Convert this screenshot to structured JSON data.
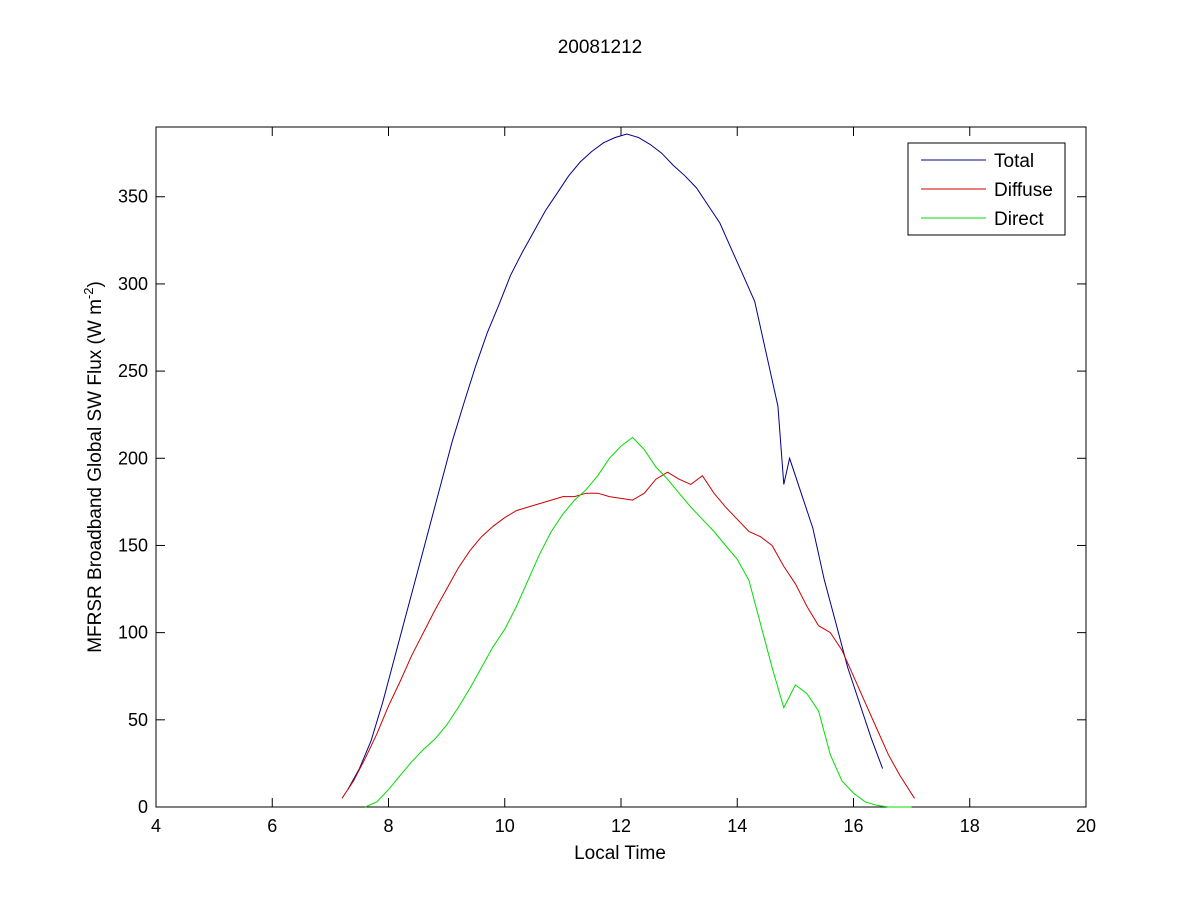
{
  "chart_data": {
    "type": "line",
    "title": "20081212",
    "xlabel": "Local Time",
    "ylabel_main": "MFRSR Broadband Global SW Flux (W m",
    "ylabel_sup": "-2",
    "ylabel_close": ")",
    "xlim": [
      4,
      20
    ],
    "ylim": [
      0,
      390
    ],
    "xticks": [
      4,
      6,
      8,
      10,
      12,
      14,
      16,
      18,
      20
    ],
    "yticks": [
      0,
      50,
      100,
      150,
      200,
      250,
      300,
      350
    ],
    "grid": false,
    "legend_position": "top-right",
    "series": [
      {
        "name": "Total",
        "color": "#00008b",
        "x": [
          7.3,
          7.5,
          7.7,
          7.9,
          8.1,
          8.3,
          8.5,
          8.7,
          8.9,
          9.1,
          9.3,
          9.5,
          9.7,
          9.9,
          10.1,
          10.3,
          10.5,
          10.7,
          10.9,
          11.1,
          11.3,
          11.5,
          11.7,
          11.9,
          12.1,
          12.3,
          12.5,
          12.7,
          12.9,
          13.1,
          13.3,
          13.5,
          13.7,
          13.9,
          14.1,
          14.3,
          14.5,
          14.7,
          14.8,
          14.9,
          15.1,
          15.3,
          15.5,
          15.7,
          15.9,
          16.1,
          16.3,
          16.5
        ],
        "y": [
          10,
          22,
          38,
          60,
          85,
          110,
          135,
          160,
          185,
          210,
          232,
          253,
          272,
          288,
          305,
          318,
          330,
          342,
          352,
          362,
          370,
          376,
          381,
          384,
          386,
          384,
          380,
          375,
          368,
          362,
          355,
          345,
          335,
          320,
          305,
          290,
          260,
          230,
          185,
          200,
          180,
          160,
          130,
          105,
          80,
          60,
          40,
          22
        ]
      },
      {
        "name": "Diffuse",
        "color": "#cc0000",
        "x": [
          7.2,
          7.4,
          7.6,
          7.8,
          8.0,
          8.2,
          8.4,
          8.6,
          8.8,
          9.0,
          9.2,
          9.4,
          9.6,
          9.8,
          10.0,
          10.2,
          10.4,
          10.6,
          10.8,
          11.0,
          11.2,
          11.4,
          11.6,
          11.8,
          12.0,
          12.2,
          12.4,
          12.6,
          12.8,
          13.0,
          13.2,
          13.4,
          13.6,
          13.8,
          14.0,
          14.2,
          14.4,
          14.6,
          14.8,
          15.0,
          15.2,
          15.4,
          15.6,
          15.8,
          16.0,
          16.2,
          16.4,
          16.6,
          16.8,
          17.05
        ],
        "y": [
          5,
          15,
          28,
          42,
          58,
          72,
          87,
          100,
          113,
          125,
          137,
          147,
          155,
          161,
          166,
          170,
          172,
          174,
          176,
          178,
          178,
          180,
          180,
          178,
          177,
          176,
          180,
          188,
          192,
          188,
          185,
          190,
          180,
          172,
          165,
          158,
          155,
          150,
          138,
          128,
          115,
          104,
          100,
          90,
          75,
          60,
          45,
          30,
          18,
          5
        ]
      },
      {
        "name": "Direct",
        "color": "#00dd00",
        "x": [
          7.6,
          7.8,
          8.0,
          8.2,
          8.4,
          8.6,
          8.8,
          9.0,
          9.2,
          9.4,
          9.6,
          9.8,
          10.0,
          10.2,
          10.4,
          10.6,
          10.8,
          11.0,
          11.2,
          11.4,
          11.6,
          11.8,
          12.0,
          12.2,
          12.4,
          12.6,
          12.8,
          13.0,
          13.2,
          13.4,
          13.6,
          13.8,
          14.0,
          14.2,
          14.4,
          14.6,
          14.8,
          15.0,
          15.2,
          15.4,
          15.6,
          15.8,
          16.0,
          16.2,
          16.4,
          16.6,
          16.8,
          17.0
        ],
        "y": [
          0,
          3,
          10,
          18,
          26,
          33,
          39,
          47,
          57,
          68,
          80,
          92,
          102,
          115,
          130,
          145,
          158,
          168,
          176,
          182,
          190,
          200,
          207,
          212,
          205,
          195,
          188,
          180,
          172,
          165,
          158,
          150,
          142,
          130,
          105,
          80,
          57,
          70,
          65,
          55,
          30,
          15,
          8,
          3,
          1,
          0,
          0,
          0
        ]
      }
    ]
  }
}
